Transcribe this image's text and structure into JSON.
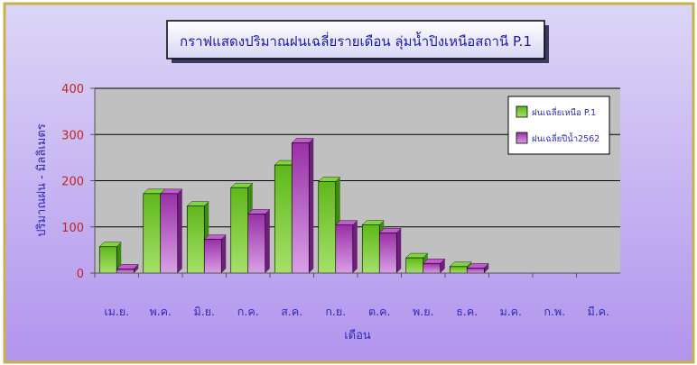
{
  "chart_data": {
    "type": "bar",
    "title": "กราฟแสดงปริมาณฝนเฉลี่ยรายเดือน ลุ่มน้ำปิงเหนือสถานี P.1",
    "xlabel": "เดือน",
    "ylabel": "ปริมาณฝน - มิลลิเมตร",
    "categories": [
      "เม.ย.",
      "พ.ค.",
      "มิ.ย.",
      "ก.ค.",
      "ส.ค.",
      "ก.ย.",
      "ต.ค.",
      "พ.ย.",
      "ธ.ค.",
      "ม.ค.",
      "ก.พ.",
      "มี.ค."
    ],
    "ylim": [
      0,
      400
    ],
    "yticks": [
      "0",
      "100",
      "200",
      "300",
      "400"
    ],
    "series": [
      {
        "name": "ฝนเฉลี่ยเหนือ P.1",
        "color": "#5fbf1a",
        "values": [
          57,
          172,
          145,
          185,
          234,
          198,
          104,
          33,
          14,
          0,
          0,
          0
        ]
      },
      {
        "name": "ฝนเฉลี่ยปีน้ำ2562",
        "color": "#a23bb0",
        "values": [
          9,
          172,
          73,
          128,
          282,
          104,
          87,
          21,
          11,
          0,
          0,
          0
        ]
      }
    ],
    "grid": true,
    "legend_position": "top-right"
  },
  "colors": {
    "outer_top": "#d9d2f5",
    "outer_bottom": "#b99df0",
    "plot_bg": "#c0c0c0",
    "axis_text": "#2b2bb8",
    "tick_value_text": "#c0261f",
    "title_text": "#1a1ab0"
  }
}
